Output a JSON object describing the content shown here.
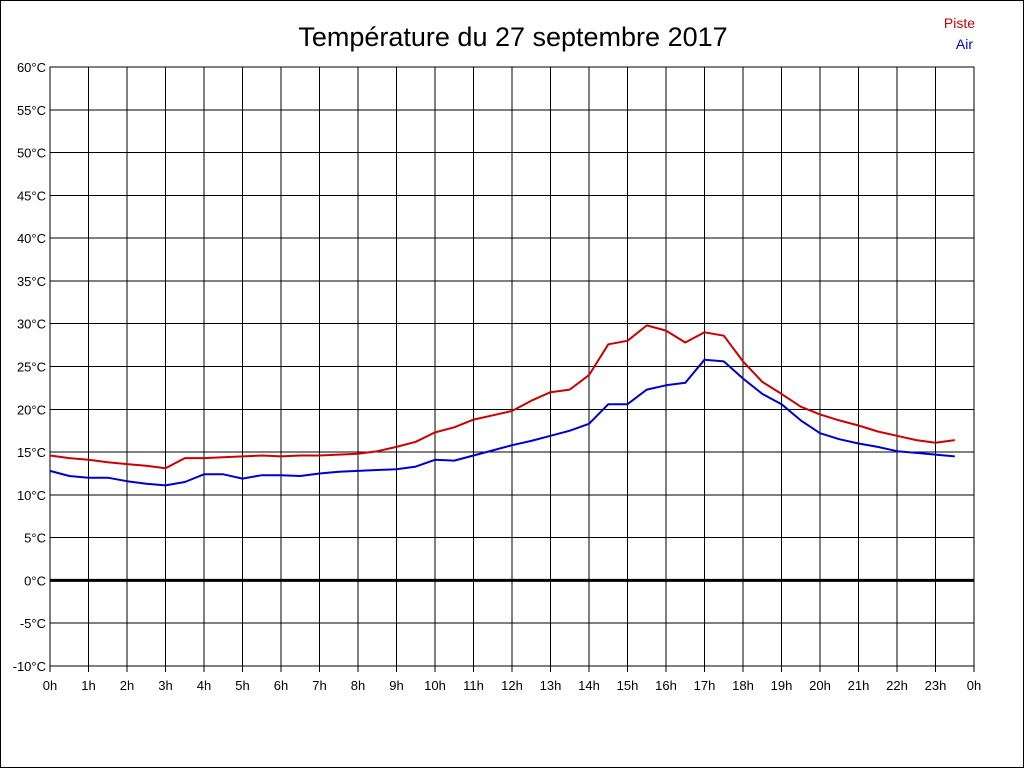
{
  "chart_data": {
    "type": "line",
    "title": "Température du 27 septembre 2017",
    "x_unit": "h",
    "y_unit": "°C",
    "xlim": [
      0,
      24
    ],
    "ylim": [
      -10,
      60
    ],
    "y_ticks": [
      60,
      55,
      50,
      45,
      40,
      35,
      30,
      25,
      20,
      15,
      10,
      5,
      0,
      -5,
      -10
    ],
    "y_tick_labels": [
      "60°C",
      "55°C",
      "50°C",
      "45°C",
      "40°C",
      "35°C",
      "30°C",
      "25°C",
      "20°C",
      "15°C",
      "10°C",
      "5°C",
      "0°C",
      "-5°C",
      "-10°C"
    ],
    "x_ticks": [
      0,
      1,
      2,
      3,
      4,
      5,
      6,
      7,
      8,
      9,
      10,
      11,
      12,
      13,
      14,
      15,
      16,
      17,
      18,
      19,
      20,
      21,
      22,
      23,
      24
    ],
    "x_tick_labels": [
      "0h",
      "1h",
      "2h",
      "3h",
      "4h",
      "5h",
      "6h",
      "7h",
      "8h",
      "9h",
      "10h",
      "11h",
      "12h",
      "13h",
      "14h",
      "15h",
      "16h",
      "17h",
      "18h",
      "19h",
      "20h",
      "21h",
      "22h",
      "23h",
      "0h"
    ],
    "grid": true,
    "legend_position": "top-right",
    "zero_line": true,
    "x": [
      0,
      0.5,
      1,
      1.5,
      2,
      2.5,
      3,
      3.5,
      4,
      4.5,
      5,
      5.5,
      6,
      6.5,
      7,
      7.5,
      8,
      8.5,
      9,
      9.5,
      10,
      10.5,
      11,
      11.5,
      12,
      12.5,
      13,
      13.5,
      14,
      14.5,
      15,
      15.5,
      16,
      16.5,
      17,
      17.5,
      18,
      18.5,
      19,
      19.5,
      20,
      20.5,
      21,
      21.5,
      22,
      22.5,
      23,
      23.5
    ],
    "series": [
      {
        "name": "Piste",
        "color": "#cc0000",
        "values": [
          14.6,
          14.3,
          14.1,
          13.8,
          13.6,
          13.4,
          13.1,
          14.3,
          14.3,
          14.4,
          14.5,
          14.6,
          14.5,
          14.6,
          14.6,
          14.7,
          14.8,
          15.1,
          15.6,
          16.2,
          17.3,
          17.9,
          18.8,
          19.3,
          19.8,
          21.0,
          22.0,
          22.3,
          24.0,
          27.6,
          28.0,
          29.8,
          29.2,
          27.8,
          29.0,
          28.6,
          25.6,
          23.2,
          21.8,
          20.3,
          19.4,
          18.7,
          18.1,
          17.4,
          16.9,
          16.4,
          16.1,
          16.4
        ]
      },
      {
        "name": "Air",
        "color": "#0000cc",
        "values": [
          12.8,
          12.2,
          12.0,
          12.0,
          11.6,
          11.3,
          11.1,
          11.5,
          12.4,
          12.4,
          11.9,
          12.3,
          12.3,
          12.2,
          12.5,
          12.7,
          12.8,
          12.9,
          13.0,
          13.3,
          14.1,
          14.0,
          14.6,
          15.2,
          15.8,
          16.3,
          16.9,
          17.5,
          18.3,
          20.6,
          20.6,
          22.3,
          22.8,
          23.1,
          25.8,
          25.6,
          23.6,
          21.8,
          20.6,
          18.7,
          17.2,
          16.5,
          16.0,
          15.6,
          15.1,
          14.9,
          14.7,
          14.5
        ]
      }
    ]
  }
}
